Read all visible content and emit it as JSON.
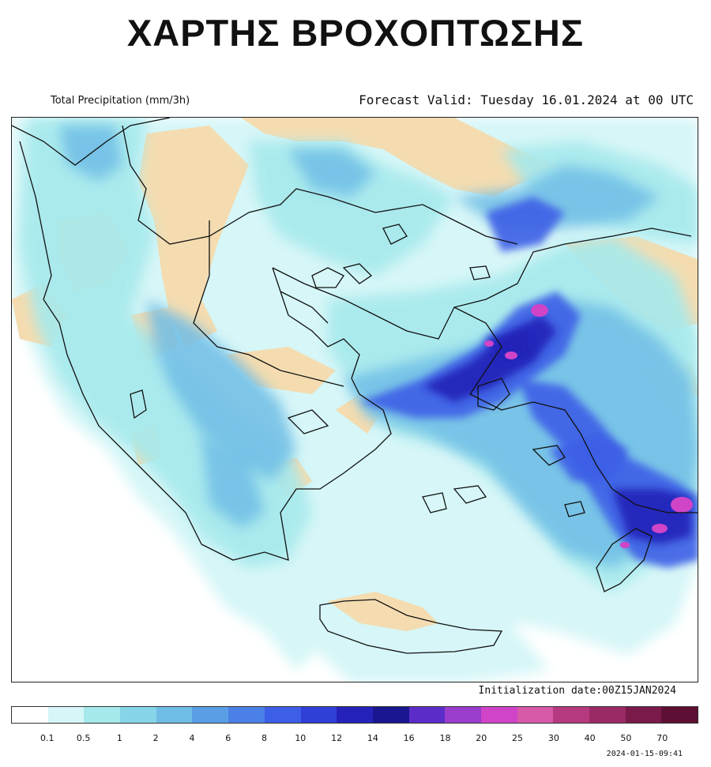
{
  "title": "ΧΑΡΤΗΣ ΒΡΟΧΟΠΤΩΣΗΣ",
  "header": {
    "variable": "Total Precipitation (mm/3h)",
    "forecast_valid": "Forecast Valid:  Tuesday 16.01.2024 at 00 UTC"
  },
  "init_label": "Initialization date:00Z15JAN2024",
  "timestamp": "2024-01-15-09:41",
  "legend": {
    "colors": [
      "#ffffff",
      "#d6f6f7",
      "#a6e9ec",
      "#86d4e8",
      "#6fbde6",
      "#5a9fe6",
      "#4b81e6",
      "#3d5ee6",
      "#2f3fd8",
      "#2422b8",
      "#1a1690",
      "#5b2cc8",
      "#9a3ccc",
      "#d044c8",
      "#d65aa8",
      "#b63a80",
      "#9a2a66",
      "#7a1a4a",
      "#5e0f34"
    ],
    "ticks": [
      "0.1",
      "0.5",
      "1",
      "2",
      "4",
      "6",
      "8",
      "10",
      "12",
      "14",
      "16",
      "18",
      "20",
      "25",
      "30",
      "40",
      "50",
      "70"
    ]
  },
  "map_colors": {
    "land_dry": "#f4dcb0",
    "precip_light": "#d6f6f7",
    "precip_low": "#a6e9ec",
    "precip_mid": "#6fbde6",
    "precip_high": "#3d5ee6",
    "precip_very_high": "#2422b8",
    "precip_extreme": "#d044c8",
    "coastline": "#111111"
  }
}
